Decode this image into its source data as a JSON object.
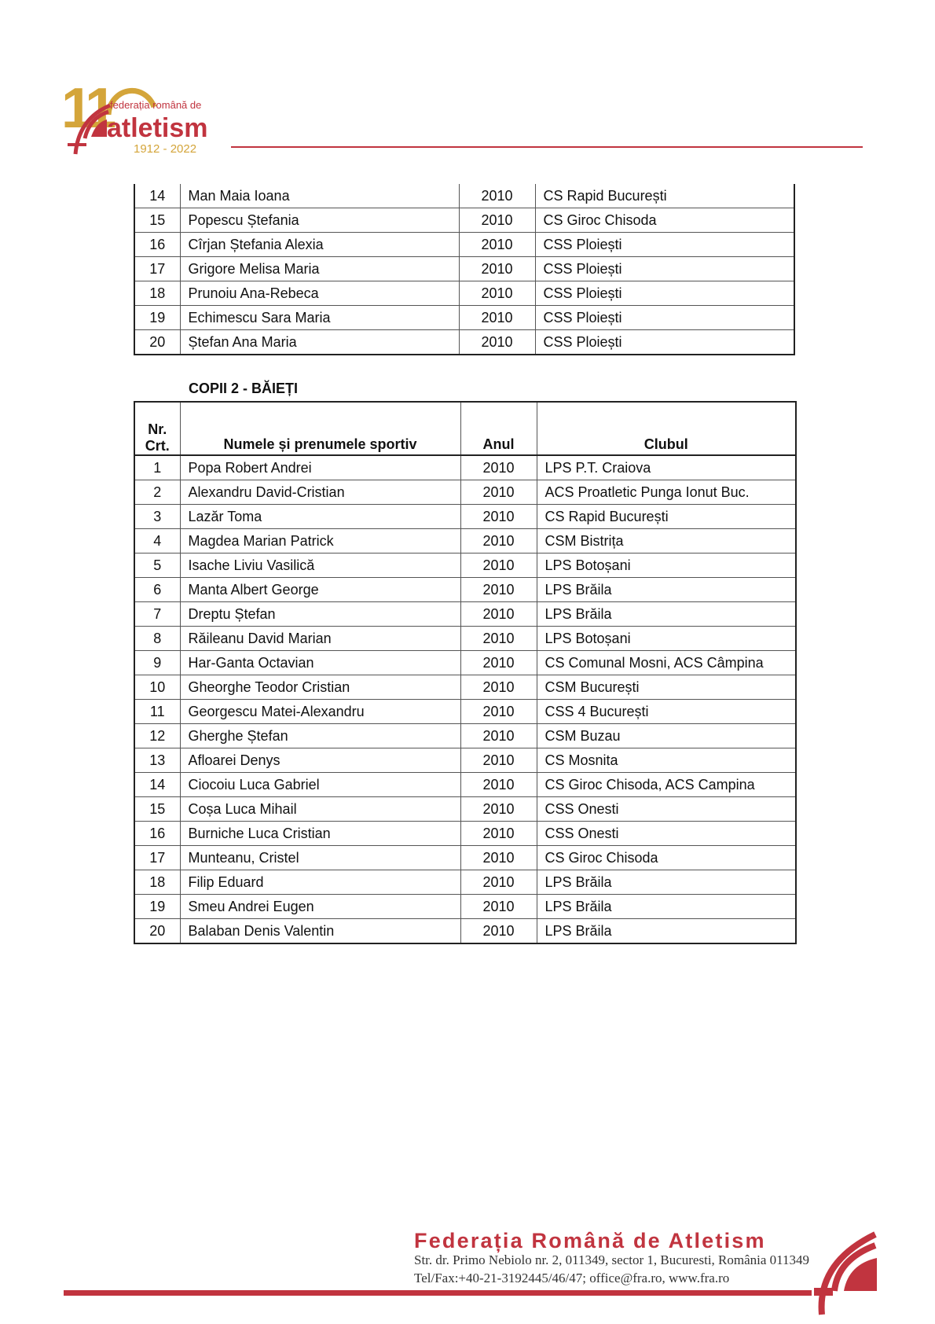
{
  "header": {
    "logo_text": {
      "number": "110",
      "line1": "federația română de",
      "line2": "atletism",
      "years": "1912 - 2022"
    },
    "colors": {
      "brand_red": "#c1343f",
      "brand_gold": "#d4a53a"
    }
  },
  "table_continued": {
    "rows": [
      {
        "nr": "14",
        "name": "Man Maia Ioana",
        "year": "2010",
        "club": "CS Rapid București"
      },
      {
        "nr": "15",
        "name": "Popescu Ștefania",
        "year": "2010",
        "club": "CS Giroc Chisoda"
      },
      {
        "nr": "16",
        "name": "Cîrjan Ștefania Alexia",
        "year": "2010",
        "club": "CSS Ploiești"
      },
      {
        "nr": "17",
        "name": "Grigore Melisa Maria",
        "year": "2010",
        "club": "CSS Ploiești"
      },
      {
        "nr": "18",
        "name": "Prunoiu Ana-Rebeca",
        "year": "2010",
        "club": "CSS Ploiești"
      },
      {
        "nr": "19",
        "name": "Echimescu Sara Maria",
        "year": "2010",
        "club": "CSS Ploiești"
      },
      {
        "nr": "20",
        "name": "Ștefan Ana Maria",
        "year": "2010",
        "club": "CSS Ploiești"
      }
    ]
  },
  "section": {
    "heading": "COPII 2 - BĂIEȚI",
    "columns": {
      "nr_line1": "Nr.",
      "nr_line2": "Crt.",
      "name": "Numele și prenumele sportiv",
      "year": "Anul",
      "club": "Clubul"
    },
    "rows": [
      {
        "nr": "1",
        "name": "Popa Robert Andrei",
        "year": "2010",
        "club": "LPS P.T. Craiova"
      },
      {
        "nr": "2",
        "name": "Alexandru David-Cristian",
        "year": "2010",
        "club": "ACS Proatletic Punga Ionut Buc."
      },
      {
        "nr": "3",
        "name": "Lazăr Toma",
        "year": "2010",
        "club": "CS Rapid București"
      },
      {
        "nr": "4",
        "name": "Magdea Marian Patrick",
        "year": "2010",
        "club": "CSM Bistrița"
      },
      {
        "nr": "5",
        "name": "Isache Liviu Vasilică",
        "year": "2010",
        "club": "LPS Botoșani"
      },
      {
        "nr": "6",
        "name": "Manta Albert George",
        "year": "2010",
        "club": "LPS Brăila"
      },
      {
        "nr": "7",
        "name": "Dreptu Ștefan",
        "year": "2010",
        "club": "LPS Brăila"
      },
      {
        "nr": "8",
        "name": "Răileanu David Marian",
        "year": "2010",
        "club": "LPS Botoșani"
      },
      {
        "nr": "9",
        "name": "Har-Ganta Octavian",
        "year": "2010",
        "club": "CS Comunal Mosni, ACS Câmpina"
      },
      {
        "nr": "10",
        "name": "Gheorghe Teodor Cristian",
        "year": "2010",
        "club": "CSM București"
      },
      {
        "nr": "11",
        "name": "Georgescu Matei-Alexandru",
        "year": "2010",
        "club": "CSS 4 București"
      },
      {
        "nr": "12",
        "name": "Gherghe Ștefan",
        "year": "2010",
        "club": "CSM Buzau"
      },
      {
        "nr": "13",
        "name": "Afloarei Denys",
        "year": "2010",
        "club": "CS Mosnita"
      },
      {
        "nr": "14",
        "name": "Ciocoiu Luca Gabriel",
        "year": "2010",
        "club": "CS Giroc Chisoda, ACS Campina"
      },
      {
        "nr": "15",
        "name": "Coșa Luca Mihail",
        "year": "2010",
        "club": "CSS Onesti"
      },
      {
        "nr": "16",
        "name": "Burniche Luca Cristian",
        "year": "2010",
        "club": "CSS Onesti"
      },
      {
        "nr": "17",
        "name": "Munteanu, Cristel",
        "year": "2010",
        "club": "CS Giroc Chisoda"
      },
      {
        "nr": "18",
        "name": "Filip Eduard",
        "year": "2010",
        "club": "LPS Brăila"
      },
      {
        "nr": "19",
        "name": "Smeu Andrei Eugen",
        "year": "2010",
        "club": "LPS Brăila"
      },
      {
        "nr": "20",
        "name": "Balaban Denis Valentin",
        "year": "2010",
        "club": "LPS Brăila"
      }
    ]
  },
  "footer": {
    "title": "Federația Română de Atletism",
    "address": "Str. dr. Primo Nebiolo nr. 2,  011349, sector 1, Bucuresti, România  011349",
    "contact": "Tel/Fax:+40-21-3192445/46/47; office@fra.ro, www.fra.ro"
  }
}
